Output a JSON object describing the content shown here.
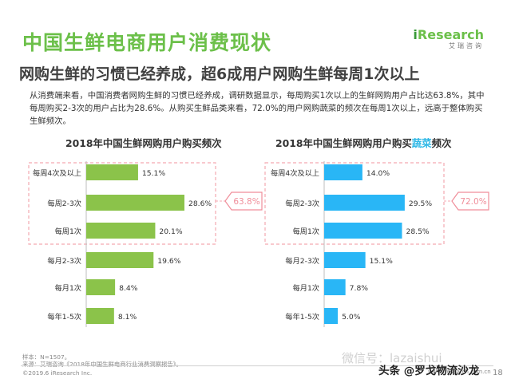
{
  "header": {
    "title": "中国生鲜电商用户消费现状",
    "subtitle": "网购生鲜的习惯已经养成，超6成用户网购生鲜每周1次以上",
    "logo_text": "Research",
    "logo_i": "i",
    "logo_sub": "艾瑞咨询"
  },
  "body_text": "从消费端来看，中国消费者网购生鲜的习惯已经养成，调研数据显示，每周购买1次以上的生鲜网购用户占比达63.8%，其中每周购买2-3次的用户占比为28.6%。从购买生鲜品类来看，72.0%的用户网购蔬菜的频次在每周1次以上，远高于整体购买生鲜频次。",
  "colors": {
    "title_green": "#6cc04a",
    "bar_green": "#8bc34a",
    "bar_blue": "#29b6f6",
    "callout_pink": "#f08e9a",
    "dashed_pink": "#f4a9b1"
  },
  "chart_data": [
    {
      "type": "bar",
      "orientation": "horizontal",
      "title": "2018年中国生鲜网购用户购买频次",
      "categories": [
        "每周4次及以上",
        "每周2-3次",
        "每周1次",
        "每月2-3次",
        "每月1次",
        "每年1-5次"
      ],
      "values": [
        15.1,
        28.6,
        20.1,
        19.6,
        8.4,
        8.1
      ],
      "value_labels": [
        "15.1%",
        "28.6%",
        "20.1%",
        "19.6%",
        "8.4%",
        "8.1%"
      ],
      "xlim": [
        0,
        30
      ],
      "grid": false,
      "highlight": {
        "categories": [
          "每周4次及以上",
          "每周2-3次",
          "每周1次"
        ],
        "total_label": "63.8%"
      }
    },
    {
      "type": "bar",
      "orientation": "horizontal",
      "title_prefix": "2018年中国生鲜网购用户购买",
      "title_highlight": "蔬菜",
      "title_suffix": "频次",
      "categories": [
        "每周4次及以上",
        "每周2-3次",
        "每周1次",
        "每月2-3次",
        "每月1次",
        "每年1-5次"
      ],
      "values": [
        14.0,
        29.5,
        28.5,
        15.1,
        7.8,
        5.0
      ],
      "value_labels": [
        "14.0%",
        "29.5%",
        "28.5%",
        "15.1%",
        "7.8%",
        "5.0%"
      ],
      "xlim": [
        0,
        30
      ],
      "grid": false,
      "highlight": {
        "categories": [
          "每周4次及以上",
          "每周2-3次",
          "每周1次"
        ],
        "total_label": "72.0%"
      }
    }
  ],
  "footer": {
    "sample": "样本：N=1507。",
    "source": "来源：艾瑞咨询《2018年中国生鲜电商行业消费洞察报告》。",
    "copyright": "©2019.6 iResearch Inc.",
    "site": "www.iresearch.com.cn",
    "page": "18"
  },
  "watermark": "微信号：lazaishui",
  "toutiao": "头条 @罗戈物流沙龙"
}
